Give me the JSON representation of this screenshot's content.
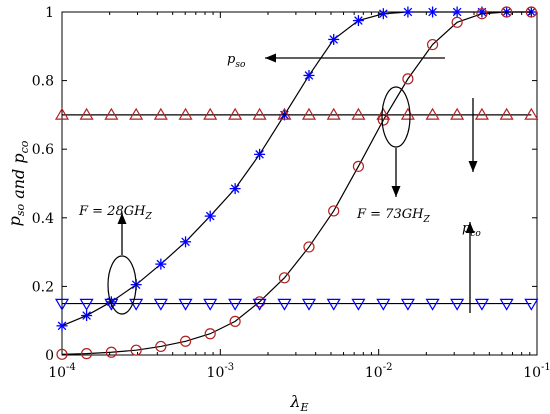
{
  "chart_data": {
    "type": "line",
    "xlabel": "λ_E",
    "ylabel": "p_so and p_co",
    "xscale": "log",
    "xlim": [
      0.0001,
      0.1
    ],
    "ylim": [
      0,
      1
    ],
    "x_ticks": [
      {
        "base": "10",
        "exp": "-4",
        "value": 0.0001
      },
      {
        "base": "10",
        "exp": "-3",
        "value": 0.001
      },
      {
        "base": "10",
        "exp": "-2",
        "value": 0.01
      },
      {
        "base": "10",
        "exp": "-1",
        "value": 0.1
      }
    ],
    "y_ticks": [
      "0",
      "0.2",
      "0.4",
      "0.6",
      "0.8",
      "1"
    ],
    "grid": false,
    "series": [
      {
        "key": "pso_28",
        "marker": "asterisk",
        "color": "#0000ff",
        "x": [
          0.0001,
          0.000143,
          0.000205,
          0.000294,
          0.000421,
          0.000603,
          0.000863,
          0.00124,
          0.00177,
          0.00254,
          0.00363,
          0.0052,
          0.00745,
          0.0107,
          0.0153,
          0.0219,
          0.0313,
          0.0449,
          0.0643,
          0.0921
        ],
        "y": [
          0.085,
          0.115,
          0.155,
          0.205,
          0.265,
          0.33,
          0.405,
          0.485,
          0.585,
          0.7,
          0.815,
          0.92,
          0.975,
          0.995,
          1.0,
          1.0,
          1.0,
          1.0,
          1.0,
          1.0
        ]
      },
      {
        "key": "pso_73",
        "marker": "circle",
        "color": "#b22222",
        "x": [
          0.0001,
          0.000143,
          0.000205,
          0.000294,
          0.000421,
          0.000603,
          0.000863,
          0.00124,
          0.00177,
          0.00254,
          0.00363,
          0.0052,
          0.00745,
          0.0107,
          0.0153,
          0.0219,
          0.0313,
          0.0449,
          0.0643,
          0.0921
        ],
        "y": [
          0.002,
          0.004,
          0.008,
          0.014,
          0.025,
          0.04,
          0.062,
          0.098,
          0.155,
          0.225,
          0.315,
          0.42,
          0.55,
          0.685,
          0.805,
          0.905,
          0.97,
          0.995,
          1.0,
          1.0
        ]
      },
      {
        "key": "pco_73",
        "marker": "triangle-up",
        "color": "#b22222",
        "x": [
          0.0001,
          0.000143,
          0.000205,
          0.000294,
          0.000421,
          0.000603,
          0.000863,
          0.00124,
          0.00177,
          0.00254,
          0.00363,
          0.0052,
          0.00745,
          0.0107,
          0.0153,
          0.0219,
          0.0313,
          0.0449,
          0.0643,
          0.0921
        ],
        "y": [
          0.7,
          0.7,
          0.7,
          0.7,
          0.7,
          0.7,
          0.7,
          0.7,
          0.7,
          0.7,
          0.7,
          0.7,
          0.7,
          0.7,
          0.7,
          0.7,
          0.7,
          0.7,
          0.7,
          0.7
        ]
      },
      {
        "key": "pco_28",
        "marker": "triangle-down",
        "color": "#0000ff",
        "x": [
          0.0001,
          0.000143,
          0.000205,
          0.000294,
          0.000421,
          0.000603,
          0.000863,
          0.00124,
          0.00177,
          0.00254,
          0.00363,
          0.0052,
          0.00745,
          0.0107,
          0.0153,
          0.0219,
          0.0313,
          0.0449,
          0.0643,
          0.0921
        ],
        "y": [
          0.15,
          0.15,
          0.15,
          0.15,
          0.15,
          0.15,
          0.15,
          0.15,
          0.15,
          0.15,
          0.15,
          0.15,
          0.15,
          0.15,
          0.15,
          0.15,
          0.15,
          0.15,
          0.15,
          0.15
        ]
      }
    ],
    "annotations": {
      "pso_label": "p_so",
      "pco_label": "p_co",
      "f28_label": "F = 28GH_Z",
      "f73_label": "F = 73GH_Z"
    }
  }
}
